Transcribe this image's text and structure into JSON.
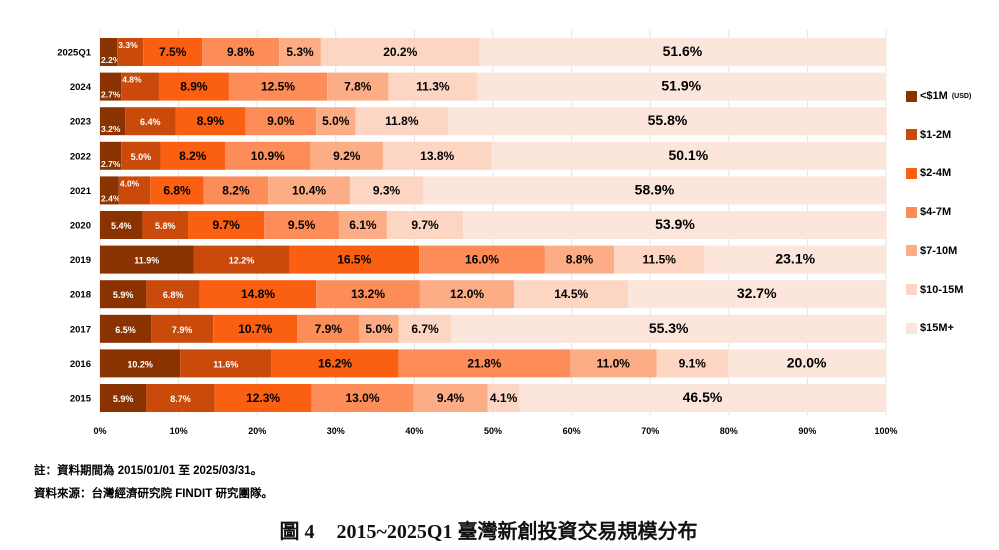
{
  "chart_data": {
    "type": "bar",
    "orientation": "horizontal",
    "stacked": true,
    "normalized": true,
    "categories": [
      "2025Q1",
      "2024",
      "2023",
      "2022",
      "2021",
      "2020",
      "2019",
      "2018",
      "2017",
      "2016",
      "2015"
    ],
    "series": [
      {
        "name": "<$1M",
        "values": [
          2.2,
          2.7,
          3.2,
          2.7,
          2.4,
          5.4,
          11.9,
          5.9,
          6.5,
          10.2,
          5.9
        ]
      },
      {
        "name": "$1-2M",
        "values": [
          3.3,
          4.8,
          6.4,
          5.0,
          4.0,
          5.8,
          12.2,
          6.8,
          7.9,
          11.6,
          8.7
        ]
      },
      {
        "name": "$2-4M",
        "values": [
          7.5,
          8.9,
          8.9,
          8.2,
          6.8,
          9.7,
          16.5,
          14.8,
          10.7,
          16.2,
          12.3
        ]
      },
      {
        "name": "$4-7M",
        "values": [
          9.8,
          12.5,
          9.0,
          10.9,
          8.2,
          9.5,
          16.0,
          13.2,
          7.9,
          21.8,
          13.0
        ]
      },
      {
        "name": "$7-10M",
        "values": [
          5.3,
          7.8,
          5.0,
          9.2,
          10.4,
          6.1,
          8.8,
          12.0,
          5.0,
          11.0,
          9.4
        ]
      },
      {
        "name": "$10-15M",
        "values": [
          20.2,
          11.3,
          11.8,
          13.8,
          9.3,
          9.7,
          11.5,
          14.5,
          6.7,
          9.1,
          4.1
        ]
      },
      {
        "name": "$15M+",
        "values": [
          51.6,
          51.9,
          55.8,
          50.1,
          58.9,
          53.9,
          23.1,
          32.7,
          55.3,
          20.0,
          46.5
        ]
      }
    ],
    "colors": [
      "#8B3300",
      "#C94A0B",
      "#FA5F12",
      "#FD8D58",
      "#FDAD86",
      "#FDD6C3",
      "#FCE5DA"
    ],
    "legend_unit": "(USD)",
    "legend_position": "right",
    "xlim": [
      0,
      100
    ],
    "xticks": [
      "0%",
      "10%",
      "20%",
      "30%",
      "40%",
      "50%",
      "60%",
      "70%",
      "80%",
      "90%",
      "100%"
    ],
    "grid": true
  },
  "notes": {
    "note1": "註：資料期間為 2015/01/01 至 2025/03/31。",
    "note2": "資料來源：台灣經濟研究院 FINDIT 研究團隊。"
  },
  "caption": {
    "figure": "圖 4",
    "title": "2015~2025Q1 臺灣新創投資交易規模分布"
  }
}
